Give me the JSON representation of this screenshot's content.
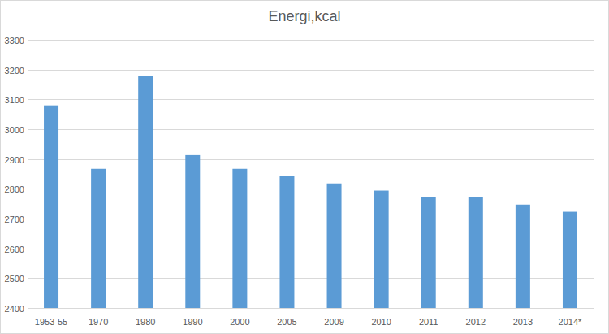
{
  "chart_data": {
    "type": "bar",
    "title": "Energi,kcal",
    "categories": [
      "1953-55",
      "1970",
      "1980",
      "1990",
      "2000",
      "2005",
      "2009",
      "2010",
      "2011",
      "2012",
      "2013",
      "2014*"
    ],
    "values": [
      3080,
      2867,
      3178,
      2913,
      2867,
      2843,
      2818,
      2794,
      2772,
      2772,
      2747,
      2723
    ],
    "color": "#5b9bd5",
    "ylim": [
      2400,
      3300
    ],
    "yticks": [
      2400,
      2500,
      2600,
      2700,
      2800,
      2900,
      3000,
      3100,
      3200,
      3300
    ],
    "grid": true
  }
}
